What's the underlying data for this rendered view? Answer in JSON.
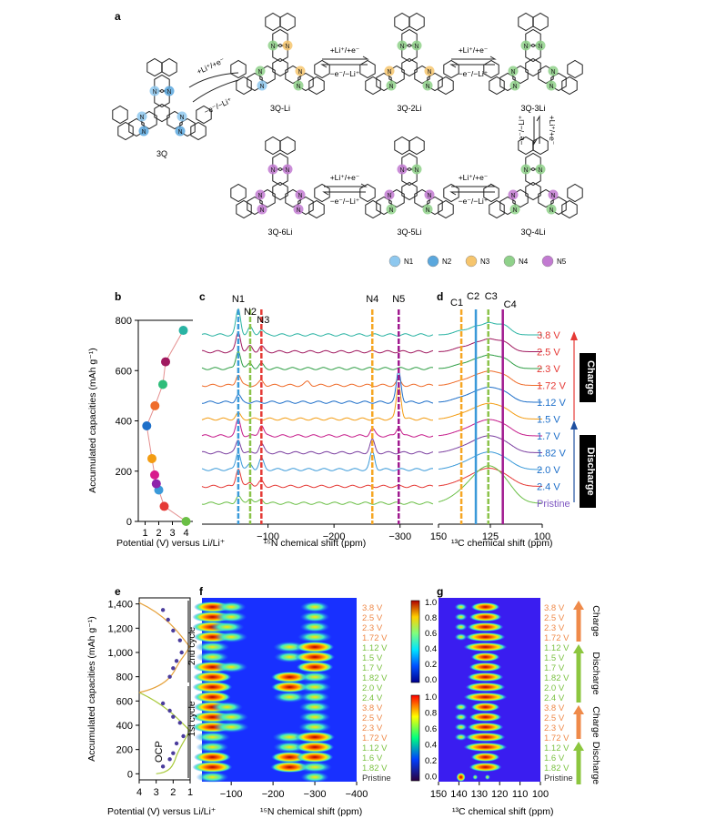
{
  "panel_labels": {
    "a": "a",
    "b": "b",
    "c": "c",
    "d": "d",
    "e": "e",
    "f": "f",
    "g": "g"
  },
  "scheme": {
    "molecules": [
      {
        "id": "3Q",
        "label": "3Q"
      },
      {
        "id": "3Q-Li",
        "label": "3Q-Li"
      },
      {
        "id": "3Q-2Li",
        "label": "3Q-2Li"
      },
      {
        "id": "3Q-3Li",
        "label": "3Q-3Li"
      },
      {
        "id": "3Q-4Li",
        "label": "3Q-4Li"
      },
      {
        "id": "3Q-5Li",
        "label": "3Q-5Li"
      },
      {
        "id": "3Q-6Li",
        "label": "3Q-6Li"
      }
    ],
    "arrow_fwd": "+Li⁺/+e⁻",
    "arrow_rev": "−e⁻/−Li⁺",
    "legend": [
      {
        "label": "N1",
        "color": "#8ec8ef"
      },
      {
        "label": "N2",
        "color": "#5aa7dd"
      },
      {
        "label": "N3",
        "color": "#f6c56d"
      },
      {
        "label": "N4",
        "color": "#8fd18a"
      },
      {
        "label": "N5",
        "color": "#c27ad1"
      }
    ]
  },
  "chart_data": [
    {
      "panel": "b",
      "type": "scatter",
      "ylabel": "Accumulated capacities (mAh g⁻¹)",
      "xlabel": "Potential (V) versus Li/Li⁺",
      "x_ticks": [
        "1",
        "2",
        "3",
        "4"
      ],
      "y_ticks": [
        "0",
        "200",
        "400",
        "600",
        "800"
      ],
      "xlim": [
        0.5,
        4.5
      ],
      "ylim": [
        0,
        800
      ],
      "points": [
        {
          "x": 4.0,
          "y": 0,
          "color": "#6abf45"
        },
        {
          "x": 2.4,
          "y": 60,
          "color": "#e53935"
        },
        {
          "x": 2.0,
          "y": 125,
          "color": "#3b9ad9"
        },
        {
          "x": 1.82,
          "y": 150,
          "color": "#8e24aa"
        },
        {
          "x": 1.7,
          "y": 185,
          "color": "#d81b8c"
        },
        {
          "x": 1.5,
          "y": 250,
          "color": "#f39c12"
        },
        {
          "x": 1.12,
          "y": 380,
          "color": "#1e6fc9"
        },
        {
          "x": 1.72,
          "y": 460,
          "color": "#ef6c2a"
        },
        {
          "x": 2.3,
          "y": 545,
          "color": "#2ebd7a"
        },
        {
          "x": 2.5,
          "y": 635,
          "color": "#a0195f"
        },
        {
          "x": 3.8,
          "y": 760,
          "color": "#2ab3a3"
        }
      ]
    },
    {
      "panel": "c",
      "type": "line",
      "xlabel": "¹⁵N chemical shift (ppm)",
      "x_ticks": [
        "−100",
        "−200",
        "−300"
      ],
      "xlim": [
        0,
        -350
      ],
      "peak_markers": [
        {
          "label": "N1",
          "x": -55,
          "color": "#3b9ad9",
          "style": "dash"
        },
        {
          "label": "N2",
          "x": -73,
          "color": "#8bc34a",
          "style": "dash"
        },
        {
          "label": "N3",
          "x": -90,
          "color": "#e53935",
          "style": "dash"
        },
        {
          "label": "N4",
          "x": -258,
          "color": "#f6a623",
          "style": "dash"
        },
        {
          "label": "N5",
          "x": -298,
          "color": "#a0198f",
          "style": "dash"
        }
      ],
      "series": [
        {
          "name": "3.8 V",
          "color": "#2ab3a3",
          "peaks": [
            [
              -55,
              28
            ],
            [
              -73,
              8
            ],
            [
              -90,
              6
            ]
          ]
        },
        {
          "name": "2.5 V",
          "color": "#a0195f",
          "peaks": [
            [
              -55,
              22
            ],
            [
              -73,
              6
            ],
            [
              -90,
              6
            ]
          ]
        },
        {
          "name": "2.3 V",
          "color": "#2e9e44",
          "peaks": [
            [
              -55,
              20
            ],
            [
              -73,
              6
            ],
            [
              -90,
              5
            ]
          ]
        },
        {
          "name": "1.72 V",
          "color": "#ef6c2a",
          "peaks": [
            [
              -55,
              12
            ],
            [
              -90,
              5
            ],
            [
              -160,
              4
            ],
            [
              -298,
              6
            ]
          ]
        },
        {
          "name": "1.12 V",
          "color": "#1e6fc9",
          "peaks": [
            [
              -55,
              8
            ],
            [
              -298,
              34
            ]
          ]
        },
        {
          "name": "1.5 V",
          "color": "#f39c12",
          "peaks": [
            [
              -55,
              6
            ],
            [
              -298,
              38
            ]
          ]
        },
        {
          "name": "1.7 V",
          "color": "#c51b8a",
          "peaks": [
            [
              -55,
              18
            ],
            [
              -90,
              12
            ],
            [
              -258,
              8
            ],
            [
              -298,
              10
            ]
          ]
        },
        {
          "name": "1.82 V",
          "color": "#7b3fa0",
          "peaks": [
            [
              -55,
              14
            ],
            [
              -90,
              10
            ],
            [
              -258,
              14
            ]
          ]
        },
        {
          "name": "2.0 V",
          "color": "#3b9ad9",
          "peaks": [
            [
              -55,
              20
            ],
            [
              -73,
              6
            ],
            [
              -90,
              12
            ],
            [
              -258,
              20
            ]
          ]
        },
        {
          "name": "2.4 V",
          "color": "#e53935",
          "peaks": [
            [
              -55,
              20
            ],
            [
              -73,
              5
            ],
            [
              -90,
              6
            ]
          ]
        },
        {
          "name": "Pristine",
          "color": "#6abf45",
          "peaks": [
            [
              -55,
              8
            ],
            [
              -73,
              6
            ],
            [
              -90,
              4
            ]
          ]
        }
      ]
    },
    {
      "panel": "d",
      "type": "line",
      "xlabel": "¹³C chemical shift (ppm)",
      "x_ticks": [
        "150",
        "125",
        "100"
      ],
      "xlim": [
        150,
        100
      ],
      "peak_markers": [
        {
          "label": "C1",
          "x": 139,
          "color": "#f6a623",
          "style": "dash"
        },
        {
          "label": "C2",
          "x": 132,
          "color": "#3b9ad9",
          "style": "solid"
        },
        {
          "label": "C3",
          "x": 126,
          "color": "#8bc34a",
          "style": "dash"
        },
        {
          "label": "C4",
          "x": 119,
          "color": "#a0198f",
          "style": "solid"
        }
      ],
      "series_labels": [
        "3.8 V",
        "2.5 V",
        "2.3 V",
        "1.72 V",
        "1.12 V",
        "1.5 V",
        "1.7 V",
        "1.82 V",
        "2.0 V",
        "2.4 V",
        "Pristine"
      ],
      "label_colors": [
        "#e53935",
        "#e53935",
        "#e53935",
        "#e53935",
        "#1e6fc9",
        "#1e6fc9",
        "#1e6fc9",
        "#1e6fc9",
        "#1e6fc9",
        "#1e6fc9",
        "#7e57c2"
      ],
      "annotations": {
        "charge": "Charge",
        "discharge": "Discharge"
      }
    },
    {
      "panel": "e",
      "type": "line",
      "ylabel": "Accumulated capacities (mAh g⁻¹)",
      "xlabel": "Potential (V) versus Li/Li⁺",
      "x_ticks": [
        "4",
        "3",
        "2",
        "1"
      ],
      "y_ticks": [
        "0",
        "200",
        "400",
        "600",
        "800",
        "1,000",
        "1,200",
        "1,400"
      ],
      "xlim": [
        4,
        1
      ],
      "ylim": [
        -50,
        1450
      ],
      "annotations": {
        "cycle1": "1st cycle",
        "cycle2": "2nd cycle",
        "ocp": "OCP"
      }
    },
    {
      "panel": "f",
      "type": "heatmap",
      "xlabel": "¹⁵N chemical shift (ppm)",
      "x_ticks": [
        "−100",
        "−200",
        "−300",
        "−400"
      ],
      "colorbar_ticks": [
        "1.0",
        "0.8",
        "0.6",
        "0.4",
        "0.2",
        "0.0"
      ]
    },
    {
      "panel": "g",
      "type": "heatmap",
      "xlabel": "¹³C chemical shift (ppm)",
      "x_ticks": [
        "150",
        "140",
        "130",
        "120",
        "110",
        "100"
      ],
      "annotations": {
        "charge": "Charge",
        "discharge": "Discharge"
      }
    }
  ],
  "heatmap_rows": [
    {
      "label": "3.8 V",
      "color": "#ef8a4a"
    },
    {
      "label": "2.5 V",
      "color": "#ef8a4a"
    },
    {
      "label": "2.3 V",
      "color": "#ef8a4a"
    },
    {
      "label": "1.72 V",
      "color": "#ef8a4a"
    },
    {
      "label": "1.12 V",
      "color": "#7cc243"
    },
    {
      "label": "1.5 V",
      "color": "#7cc243"
    },
    {
      "label": "1.7 V",
      "color": "#7cc243"
    },
    {
      "label": "1.82 V",
      "color": "#7cc243"
    },
    {
      "label": "2.0 V",
      "color": "#7cc243"
    },
    {
      "label": "2.4 V",
      "color": "#7cc243"
    },
    {
      "label": "3.8 V",
      "color": "#ef8a4a"
    },
    {
      "label": "2.5 V",
      "color": "#ef8a4a"
    },
    {
      "label": "2.3 V",
      "color": "#ef8a4a"
    },
    {
      "label": "1.72 V",
      "color": "#ef8a4a"
    },
    {
      "label": "1.12 V",
      "color": "#7cc243"
    },
    {
      "label": "1.6 V",
      "color": "#7cc243"
    },
    {
      "label": "1.82 V",
      "color": "#7cc243"
    },
    {
      "label": "Pristine",
      "color": "#333333"
    }
  ]
}
